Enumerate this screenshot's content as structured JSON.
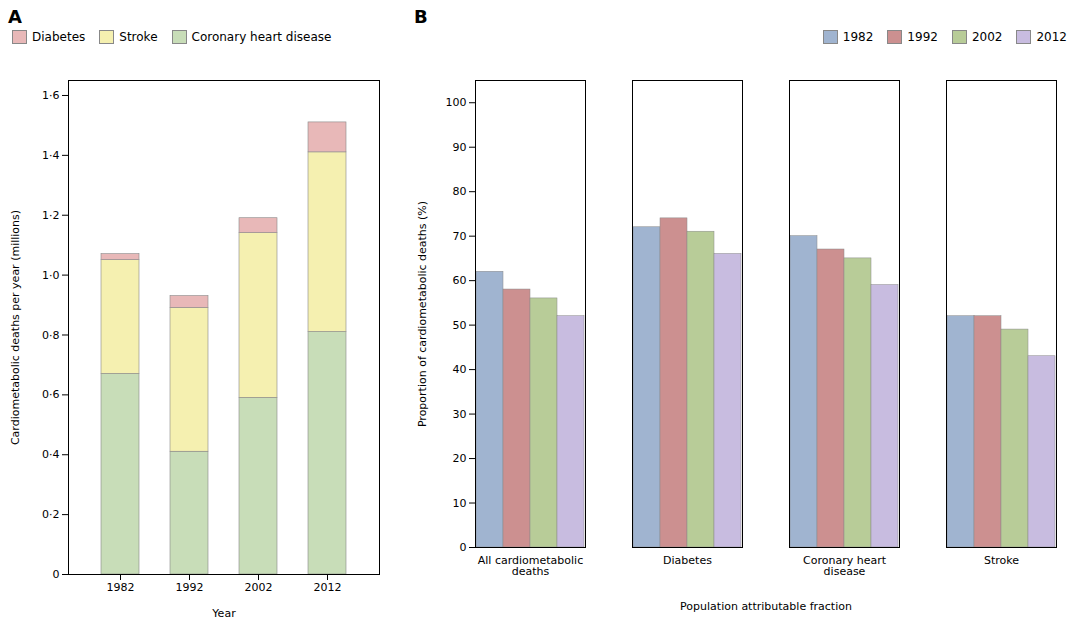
{
  "chart_data": [
    {
      "type": "bar",
      "title": "A",
      "stacked": true,
      "grid": false,
      "categories": [
        "1982",
        "1992",
        "2002",
        "2012"
      ],
      "series": [
        {
          "name": "Coronary heart disease",
          "color": "#c8ddb8",
          "values": [
            0.67,
            0.41,
            0.59,
            0.81
          ]
        },
        {
          "name": "Stroke",
          "color": "#f5f0b0",
          "values": [
            0.38,
            0.48,
            0.55,
            0.6
          ]
        },
        {
          "name": "Diabetes",
          "color": "#e8b8b8",
          "values": [
            0.02,
            0.04,
            0.05,
            0.1
          ]
        }
      ],
      "xlabel": "Year",
      "ylabel": "Cardiometabolic deaths per year (millions)",
      "ylim": [
        0,
        1.65
      ],
      "yticks": [
        0,
        {
          "value": 0.2,
          "label": "0·2"
        },
        {
          "value": 0.4,
          "label": "0·4"
        },
        {
          "value": 0.6,
          "label": "0·6"
        },
        {
          "value": 0.8,
          "label": "0·8"
        },
        {
          "value": 1.0,
          "label": "1·0"
        },
        {
          "value": 1.2,
          "label": "1·2"
        },
        {
          "value": 1.4,
          "label": "1·4"
        },
        {
          "value": 1.6,
          "label": "1·6"
        }
      ],
      "legend": "upper left"
    },
    {
      "type": "bar",
      "title": "B",
      "stacked": false,
      "grid": false,
      "categories": [
        "All cardiometabolic\ndeaths",
        "Diabetes",
        "Coronary heart\ndisease",
        "Stroke"
      ],
      "series": [
        {
          "name": "1982",
          "color": "#a0b4d0",
          "values": [
            62,
            72,
            70,
            52
          ]
        },
        {
          "name": "1992",
          "color": "#cc9090",
          "values": [
            58,
            74,
            67,
            52
          ]
        },
        {
          "name": "2002",
          "color": "#b8cc98",
          "values": [
            56,
            71,
            65,
            49
          ]
        },
        {
          "name": "2012",
          "color": "#c8bce0",
          "values": [
            52,
            66,
            59,
            43
          ]
        }
      ],
      "xlabel": "Population attributable fraction",
      "ylabel": "Proportion of cardiometabolic deaths (%)",
      "ylim": [
        0,
        105
      ],
      "yticks": [
        0,
        10,
        20,
        30,
        40,
        50,
        60,
        70,
        80,
        90,
        100
      ],
      "legend": "upper right"
    }
  ]
}
